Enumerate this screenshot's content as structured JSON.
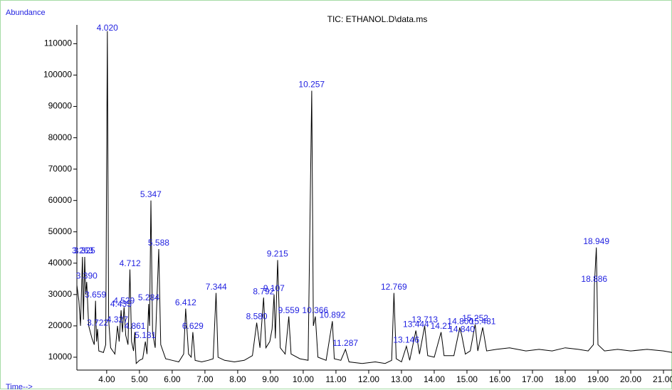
{
  "chart_data": {
    "type": "line",
    "title": "TIC: ETHANOL.D\\data.ms",
    "y_label": "Abundance",
    "x_label": "Time-->",
    "color": "#000000",
    "label_color": "#1f1fe0",
    "xlim": [
      3.09,
      21.26
    ],
    "ylim": [
      5900,
      116000
    ],
    "xticks": [
      {
        "value": 4,
        "label": "4.00"
      },
      {
        "value": 5,
        "label": "5.00"
      },
      {
        "value": 6,
        "label": "6.00"
      },
      {
        "value": 7,
        "label": "7.00"
      },
      {
        "value": 8,
        "label": "8.00"
      },
      {
        "value": 9,
        "label": "9.00"
      },
      {
        "value": 10,
        "label": "10.00"
      },
      {
        "value": 11,
        "label": "11.00"
      },
      {
        "value": 12,
        "label": "12.00"
      },
      {
        "value": 13,
        "label": "13.00"
      },
      {
        "value": 14,
        "label": "14.00"
      },
      {
        "value": 15,
        "label": "15.00"
      },
      {
        "value": 16,
        "label": "16.00"
      },
      {
        "value": 17,
        "label": "17.00"
      },
      {
        "value": 18,
        "label": "18.00"
      },
      {
        "value": 19,
        "label": "19.00"
      },
      {
        "value": 20,
        "label": "20.00"
      },
      {
        "value": 21,
        "label": "21.00"
      }
    ],
    "yticks": [
      10000,
      20000,
      30000,
      40000,
      50000,
      60000,
      70000,
      80000,
      90000,
      100000,
      110000
    ],
    "x": [
      3.09,
      3.15,
      3.2,
      3.26,
      3.29,
      3.33,
      3.36,
      3.39,
      3.45,
      3.55,
      3.62,
      3.66,
      3.69,
      3.72,
      3.76,
      3.9,
      3.97,
      4.02,
      4.06,
      4.12,
      4.25,
      4.33,
      4.38,
      4.44,
      4.48,
      4.53,
      4.58,
      4.65,
      4.71,
      4.76,
      4.82,
      4.86,
      4.9,
      5.0,
      5.1,
      5.18,
      5.23,
      5.28,
      5.31,
      5.35,
      5.4,
      5.48,
      5.59,
      5.65,
      5.8,
      6.0,
      6.2,
      6.35,
      6.41,
      6.5,
      6.58,
      6.63,
      6.7,
      6.9,
      7.1,
      7.25,
      7.34,
      7.4,
      7.6,
      7.9,
      8.2,
      8.45,
      8.58,
      8.68,
      8.79,
      8.86,
      8.98,
      9.05,
      9.11,
      9.15,
      9.22,
      9.3,
      9.45,
      9.56,
      9.63,
      9.9,
      10.15,
      10.26,
      10.31,
      10.37,
      10.45,
      10.7,
      10.89,
      10.95,
      11.15,
      11.29,
      11.4,
      11.8,
      12.2,
      12.5,
      12.7,
      12.77,
      12.84,
      13.0,
      13.15,
      13.25,
      13.44,
      13.55,
      13.71,
      13.8,
      14.0,
      14.21,
      14.3,
      14.6,
      14.78,
      14.84,
      14.95,
      15.1,
      15.25,
      15.33,
      15.48,
      15.6,
      15.9,
      16.3,
      16.8,
      17.2,
      17.6,
      18.0,
      18.4,
      18.7,
      18.86,
      18.89,
      18.95,
      19.0,
      19.2,
      19.6,
      20.0,
      20.5,
      21.0,
      21.26
    ],
    "values": [
      33000,
      28000,
      20000,
      42000,
      22000,
      42000,
      30000,
      34000,
      20000,
      16000,
      14000,
      28000,
      15000,
      19000,
      12000,
      11500,
      14000,
      114000,
      22000,
      13000,
      11000,
      20000,
      15000,
      25000,
      18000,
      26000,
      17000,
      14000,
      38000,
      15000,
      12000,
      18000,
      8000,
      9000,
      9500,
      15000,
      11000,
      27000,
      20000,
      60000,
      18000,
      13000,
      44500,
      14000,
      9500,
      9000,
      8500,
      11000,
      25500,
      11000,
      10000,
      18000,
      9000,
      8500,
      9000,
      9500,
      30500,
      10000,
      9000,
      8500,
      9000,
      10500,
      21000,
      13000,
      29000,
      13000,
      15000,
      19000,
      30000,
      16000,
      41000,
      13000,
      11000,
      23000,
      11000,
      9500,
      9000,
      95000,
      20000,
      23000,
      10000,
      9000,
      21500,
      9500,
      9000,
      12500,
      8500,
      8000,
      8500,
      8000,
      9000,
      30500,
      9500,
      8500,
      13500,
      9000,
      18500,
      11000,
      20000,
      10500,
      10000,
      18000,
      10500,
      10500,
      19500,
      17000,
      11000,
      12000,
      20500,
      12000,
      19500,
      12000,
      12500,
      13000,
      12000,
      12500,
      12000,
      13000,
      12500,
      12000,
      14000,
      33000,
      45000,
      14000,
      12000,
      12500,
      12000,
      12500,
      12000,
      11500
    ],
    "annotations": [
      {
        "value": 3.263,
        "label": "3.263"
      },
      {
        "value": 3.325,
        "label": "3.325"
      },
      {
        "value": 3.39,
        "label": "3.390"
      },
      {
        "value": 3.659,
        "label": "3.659"
      },
      {
        "value": 3.722,
        "label": "3.722"
      },
      {
        "value": 4.02,
        "label": "4.020"
      },
      {
        "value": 4.327,
        "label": "4.327"
      },
      {
        "value": 4.435,
        "label": "4.435"
      },
      {
        "value": 4.529,
        "label": "4.529"
      },
      {
        "value": 4.712,
        "label": "4.712"
      },
      {
        "value": 4.861,
        "label": "4.861"
      },
      {
        "value": 5.181,
        "label": "5.181"
      },
      {
        "value": 5.284,
        "label": "5.284"
      },
      {
        "value": 5.347,
        "label": "5.347"
      },
      {
        "value": 5.588,
        "label": "5.588"
      },
      {
        "value": 6.412,
        "label": "6.412"
      },
      {
        "value": 6.629,
        "label": "6.629"
      },
      {
        "value": 7.344,
        "label": "7.344"
      },
      {
        "value": 8.58,
        "label": "8.580"
      },
      {
        "value": 8.792,
        "label": "8.792"
      },
      {
        "value": 9.107,
        "label": "9.107"
      },
      {
        "value": 9.215,
        "label": "9.215"
      },
      {
        "value": 9.559,
        "label": "9.559"
      },
      {
        "value": 10.257,
        "label": "10.257"
      },
      {
        "value": 10.366,
        "label": "10.366"
      },
      {
        "value": 10.892,
        "label": "10.892"
      },
      {
        "value": 11.287,
        "label": "11.287"
      },
      {
        "value": 12.769,
        "label": "12.769"
      },
      {
        "value": 13.146,
        "label": "13.146"
      },
      {
        "value": 13.444,
        "label": "13.444"
      },
      {
        "value": 13.713,
        "label": "13.713"
      },
      {
        "value": 14.21,
        "label": "14.21"
      },
      {
        "value": 14.8,
        "label": "14.800"
      },
      {
        "value": 14.84,
        "label": "14.840"
      },
      {
        "value": 15.252,
        "label": "15.252"
      },
      {
        "value": 15.481,
        "label": "15.481"
      },
      {
        "value": 18.886,
        "label": "18.886"
      },
      {
        "value": 18.949,
        "label": "18.949"
      }
    ]
  }
}
